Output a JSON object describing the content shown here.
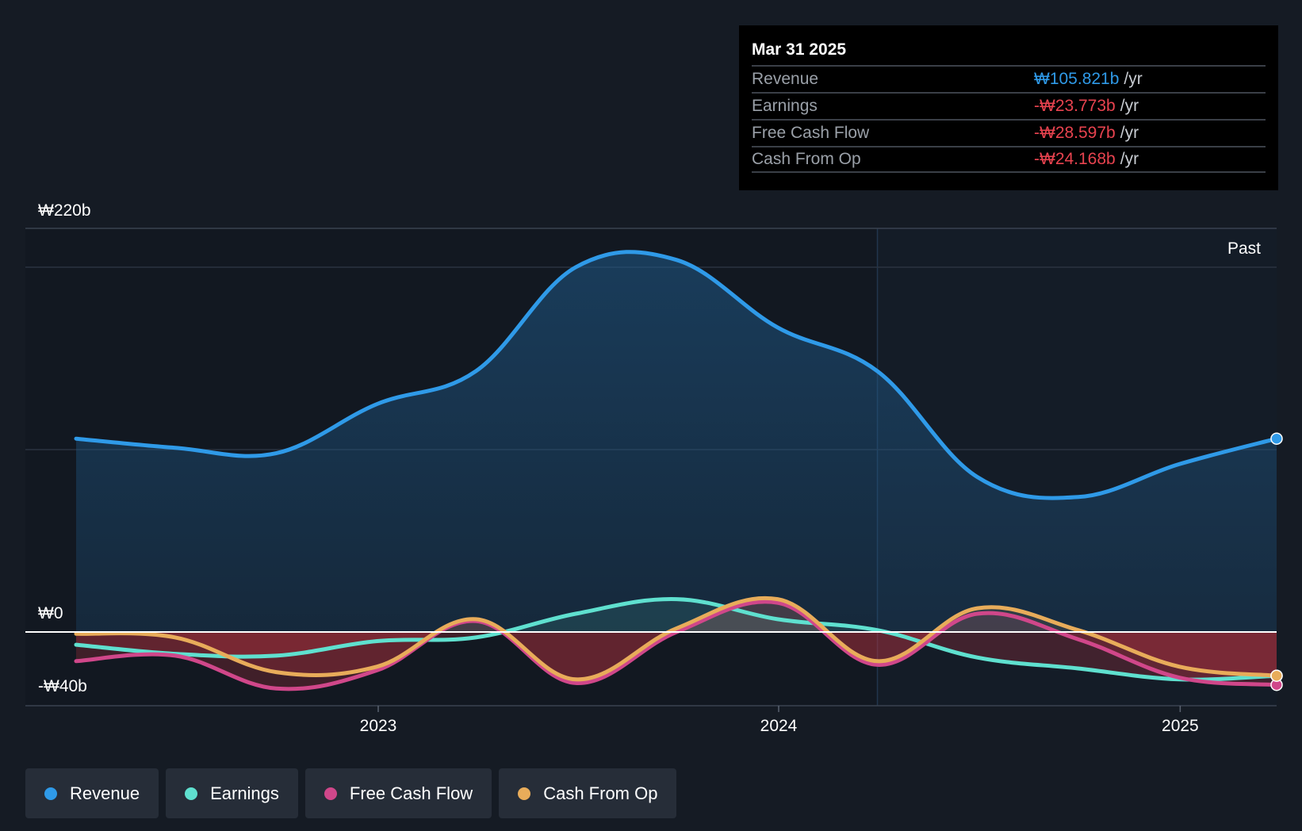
{
  "tooltip": {
    "date": "Mar 31 2025",
    "rows": [
      {
        "label": "Revenue",
        "value": "₩105.821b",
        "unit": "/yr",
        "color": "#2f9ae8"
      },
      {
        "label": "Earnings",
        "value": "-₩23.773b",
        "unit": "/yr",
        "color": "#e8434f"
      },
      {
        "label": "Free Cash Flow",
        "value": "-₩28.597b",
        "unit": "/yr",
        "color": "#e8434f"
      },
      {
        "label": "Cash From Op",
        "value": "-₩24.168b",
        "unit": "/yr",
        "color": "#e8434f"
      }
    ]
  },
  "past_label": "Past",
  "legend": [
    {
      "label": "Revenue",
      "color": "#2f9ae8"
    },
    {
      "label": "Earnings",
      "color": "#5fe0cf"
    },
    {
      "label": "Free Cash Flow",
      "color": "#d0478a"
    },
    {
      "label": "Cash From Op",
      "color": "#e8ac5a"
    }
  ],
  "chart_data": {
    "type": "line",
    "currency": "₩",
    "y_tick_labels": [
      {
        "value": 220,
        "label": "₩220b"
      },
      {
        "value": 0,
        "label": "₩0"
      },
      {
        "value": -40,
        "label": "-₩40b"
      }
    ],
    "ylim": [
      -40,
      220
    ],
    "xlim": [
      "2022-04-01",
      "2025-03-31"
    ],
    "x_tick_labels": [
      {
        "date": "2023-01-01",
        "label": "2023"
      },
      {
        "date": "2024-01-01",
        "label": "2024"
      },
      {
        "date": "2025-01-01",
        "label": "2025"
      }
    ],
    "past_divider_date": "2024-03-31",
    "series": [
      {
        "name": "Revenue",
        "color": "#2f9ae8",
        "points": [
          [
            "2022-03-31",
            106
          ],
          [
            "2022-06-30",
            101
          ],
          [
            "2022-09-30",
            98
          ],
          [
            "2022-12-31",
            125
          ],
          [
            "2023-03-31",
            143
          ],
          [
            "2023-06-30",
            200
          ],
          [
            "2023-09-30",
            204
          ],
          [
            "2023-12-31",
            167
          ],
          [
            "2024-03-31",
            143
          ],
          [
            "2024-06-30",
            85
          ],
          [
            "2024-09-30",
            74
          ],
          [
            "2024-12-31",
            92
          ],
          [
            "2025-03-31",
            106
          ]
        ]
      },
      {
        "name": "Earnings",
        "color": "#5fe0cf",
        "points": [
          [
            "2022-03-31",
            -7
          ],
          [
            "2022-06-30",
            -12
          ],
          [
            "2022-09-30",
            -13
          ],
          [
            "2022-12-31",
            -5
          ],
          [
            "2023-03-31",
            -3
          ],
          [
            "2023-06-30",
            10
          ],
          [
            "2023-09-30",
            18
          ],
          [
            "2023-12-31",
            7
          ],
          [
            "2024-03-31",
            1
          ],
          [
            "2024-06-30",
            -14
          ],
          [
            "2024-09-30",
            -20
          ],
          [
            "2024-12-31",
            -26
          ],
          [
            "2025-03-31",
            -24
          ]
        ]
      },
      {
        "name": "Free Cash Flow",
        "color": "#d0478a",
        "points": [
          [
            "2022-03-31",
            -16
          ],
          [
            "2022-06-30",
            -13
          ],
          [
            "2022-09-30",
            -31
          ],
          [
            "2022-12-31",
            -21
          ],
          [
            "2023-03-31",
            6
          ],
          [
            "2023-06-30",
            -28
          ],
          [
            "2023-09-30",
            0
          ],
          [
            "2023-12-31",
            16
          ],
          [
            "2024-03-31",
            -18
          ],
          [
            "2024-06-30",
            10
          ],
          [
            "2024-09-30",
            -4
          ],
          [
            "2024-12-31",
            -25
          ],
          [
            "2025-03-31",
            -29
          ]
        ]
      },
      {
        "name": "Cash From Op",
        "color": "#e8ac5a",
        "points": [
          [
            "2022-03-31",
            -1
          ],
          [
            "2022-06-30",
            -3
          ],
          [
            "2022-09-30",
            -22
          ],
          [
            "2022-12-31",
            -19
          ],
          [
            "2023-03-31",
            7
          ],
          [
            "2023-06-30",
            -26
          ],
          [
            "2023-09-30",
            2
          ],
          [
            "2023-12-31",
            18
          ],
          [
            "2024-03-31",
            -16
          ],
          [
            "2024-06-30",
            13
          ],
          [
            "2024-09-30",
            1
          ],
          [
            "2024-12-31",
            -19
          ],
          [
            "2025-03-31",
            -24
          ]
        ]
      }
    ]
  }
}
